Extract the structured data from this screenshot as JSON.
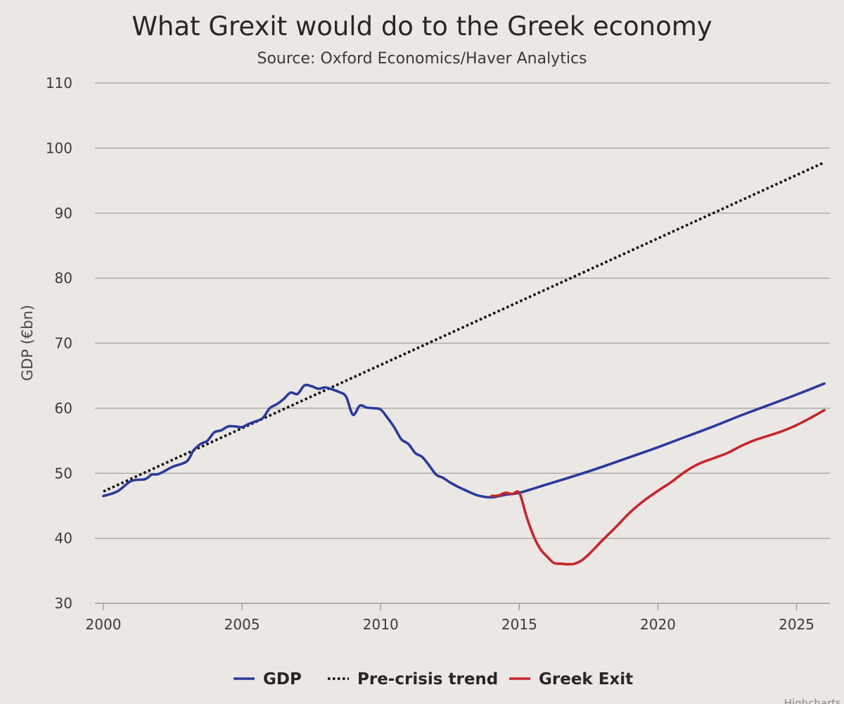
{
  "chart_data": {
    "type": "line",
    "title": "What Grexit would do to the Greek economy",
    "subtitle": "Source: Oxford Economics/Haver Analytics",
    "xlabel": "",
    "ylabel": "GDP (€bn)",
    "xlim": [
      2000,
      2026
    ],
    "ylim": [
      30,
      110
    ],
    "xticks": [
      2000,
      2005,
      2010,
      2015,
      2020,
      2025
    ],
    "yticks": [
      30,
      40,
      50,
      60,
      70,
      80,
      90,
      100,
      110
    ],
    "grid": true,
    "legend_position": "bottom-center",
    "credit": "Highcharts",
    "series": [
      {
        "name": "GDP",
        "color": "#2a3b9c",
        "dash": "solid",
        "x": [
          2000.0,
          2000.5,
          2001.0,
          2001.5,
          2001.75,
          2002.0,
          2002.5,
          2003.0,
          2003.25,
          2003.5,
          2003.75,
          2004.0,
          2004.25,
          2004.5,
          2004.75,
          2005.0,
          2005.25,
          2005.5,
          2005.75,
          2006.0,
          2006.25,
          2006.5,
          2006.75,
          2007.0,
          2007.25,
          2007.5,
          2007.75,
          2008.0,
          2008.25,
          2008.5,
          2008.75,
          2009.0,
          2009.25,
          2009.5,
          2009.75,
          2010.0,
          2010.25,
          2010.5,
          2010.75,
          2011.0,
          2011.25,
          2011.5,
          2011.75,
          2012.0,
          2012.25,
          2012.5,
          2012.75,
          2013.0,
          2013.5,
          2014.0,
          2014.5,
          2015.0,
          2016.0,
          2017.0,
          2018.0,
          2019.0,
          2020.0,
          2021.0,
          2022.0,
          2023.0,
          2024.0,
          2025.0,
          2026.0
        ],
        "values": [
          46.5,
          47.2,
          48.8,
          49.1,
          49.8,
          49.9,
          51.0,
          51.8,
          53.5,
          54.5,
          55.0,
          56.3,
          56.6,
          57.2,
          57.2,
          57.1,
          57.6,
          58.0,
          58.5,
          60.0,
          60.6,
          61.4,
          62.4,
          62.2,
          63.5,
          63.4,
          63.0,
          63.2,
          62.9,
          62.5,
          61.8,
          59.0,
          60.4,
          60.1,
          60.0,
          59.8,
          58.5,
          57.0,
          55.2,
          54.5,
          53.1,
          52.5,
          51.2,
          49.8,
          49.3,
          48.6,
          48.0,
          47.5,
          46.6,
          46.3,
          46.7,
          47.0,
          48.3,
          49.6,
          51.0,
          52.5,
          54.0,
          55.6,
          57.2,
          58.9,
          60.5,
          62.1,
          63.8
        ]
      },
      {
        "name": "Pre-crisis trend",
        "color": "#111111",
        "dash": "dotted",
        "x": [
          2000.0,
          2026.0
        ],
        "values": [
          47.2,
          97.8
        ]
      },
      {
        "name": "Greek Exit",
        "color": "#c8252a",
        "dash": "solid",
        "x": [
          2014.0,
          2014.25,
          2014.5,
          2014.75,
          2015.0,
          2015.25,
          2015.5,
          2015.75,
          2016.0,
          2016.25,
          2016.5,
          2016.75,
          2017.0,
          2017.25,
          2017.5,
          2017.75,
          2018.0,
          2018.5,
          2019.0,
          2019.5,
          2020.0,
          2020.5,
          2021.0,
          2021.5,
          2022.0,
          2022.5,
          2023.0,
          2023.5,
          2024.0,
          2024.5,
          2025.0,
          2025.5,
          2026.0
        ],
        "values": [
          46.5,
          46.6,
          47.0,
          46.8,
          47.0,
          43.5,
          40.5,
          38.4,
          37.2,
          36.2,
          36.1,
          36.0,
          36.1,
          36.6,
          37.5,
          38.6,
          39.7,
          41.8,
          44.0,
          45.8,
          47.3,
          48.7,
          50.3,
          51.5,
          52.3,
          53.1,
          54.2,
          55.1,
          55.8,
          56.5,
          57.4,
          58.5,
          59.7
        ]
      }
    ]
  }
}
